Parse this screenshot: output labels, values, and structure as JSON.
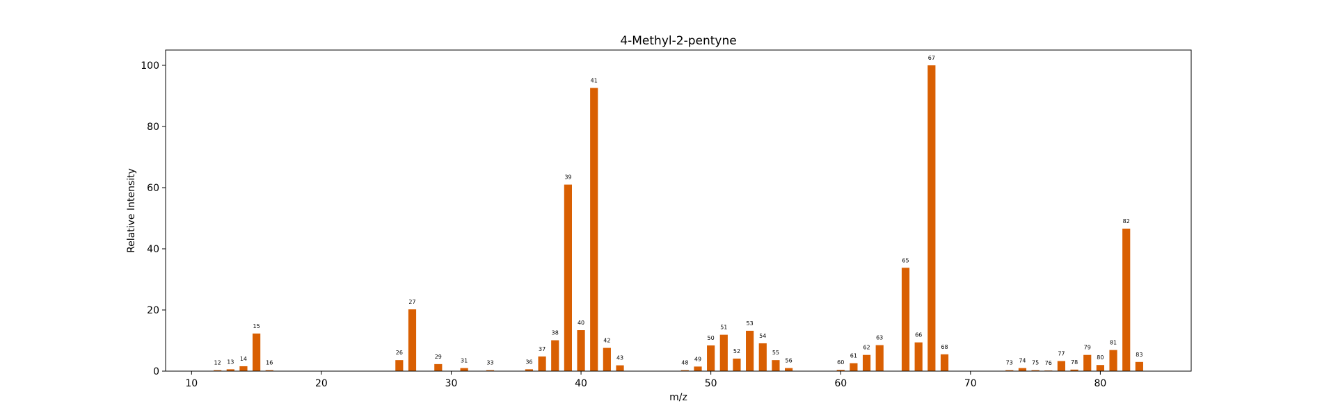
{
  "chart_data": {
    "type": "bar",
    "title": "4-Methyl-2-pentyne",
    "xlabel": "m/z",
    "ylabel": "Relative Intensity",
    "xlim": [
      8,
      87
    ],
    "ylim": [
      0,
      105
    ],
    "xticks": [
      10,
      20,
      30,
      40,
      50,
      60,
      70,
      80
    ],
    "yticks": [
      0,
      20,
      40,
      60,
      80,
      100
    ],
    "bar_color": "#d95f02",
    "grid": false,
    "legend": "none",
    "x": [
      12,
      13,
      14,
      15,
      16,
      26,
      27,
      29,
      31,
      33,
      36,
      37,
      38,
      39,
      40,
      41,
      42,
      43,
      48,
      49,
      50,
      51,
      52,
      53,
      54,
      55,
      56,
      60,
      61,
      62,
      63,
      65,
      66,
      67,
      68,
      73,
      74,
      75,
      76,
      77,
      78,
      79,
      80,
      81,
      82,
      83
    ],
    "values": [
      0.3,
      0.6,
      1.6,
      12.3,
      0.3,
      3.6,
      20.2,
      2.3,
      1.0,
      0.3,
      0.6,
      4.8,
      10.1,
      61.0,
      13.4,
      92.6,
      7.6,
      1.9,
      0.3,
      1.5,
      8.4,
      11.9,
      4.1,
      13.2,
      9.1,
      3.6,
      1.0,
      0.4,
      2.6,
      5.3,
      8.5,
      33.8,
      9.4,
      100.0,
      5.5,
      0.3,
      1.0,
      0.3,
      0.2,
      3.3,
      0.5,
      5.3,
      2.0,
      6.9,
      46.6,
      3.0
    ]
  }
}
